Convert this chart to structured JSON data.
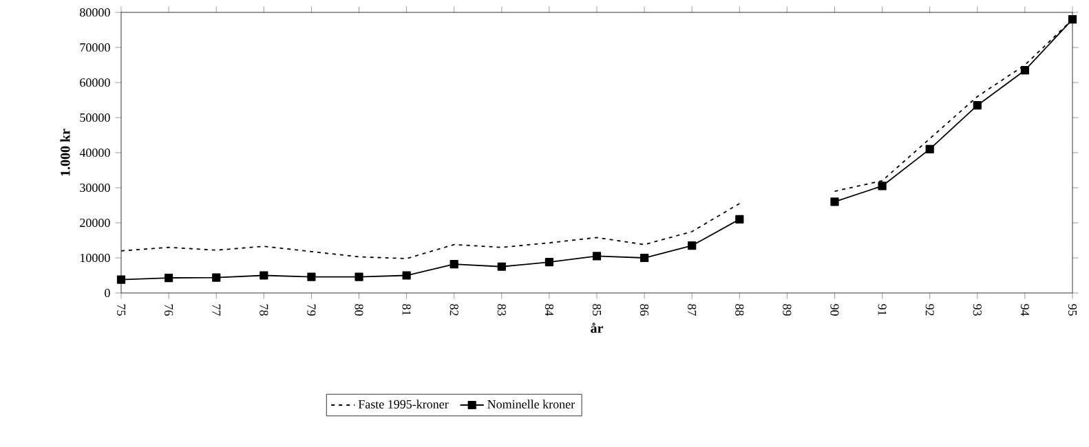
{
  "chart_data": {
    "type": "line",
    "xlabel": "år",
    "ylabel": "1.000 kr",
    "categories": [
      "75",
      "76",
      "77",
      "78",
      "79",
      "80",
      "81",
      "82",
      "83",
      "84",
      "85",
      "86",
      "87",
      "88",
      "89",
      "90",
      "91",
      "92",
      "93",
      "94",
      "95"
    ],
    "series": [
      {
        "name": "Faste 1995-kroner",
        "color": "#000000",
        "line_style": "dashed",
        "marker": "none",
        "values": [
          12000,
          13000,
          12200,
          13300,
          11800,
          10300,
          9800,
          13800,
          13000,
          14300,
          15800,
          13800,
          17500,
          25500,
          null,
          29000,
          32000,
          44000,
          56000,
          65000,
          78000
        ]
      },
      {
        "name": "Nominelle kroner",
        "color": "#000000",
        "line_style": "solid",
        "marker": "square",
        "values": [
          3800,
          4300,
          4400,
          5000,
          4600,
          4600,
          5000,
          8200,
          7500,
          8800,
          10500,
          10000,
          13500,
          21000,
          null,
          26000,
          30500,
          41000,
          53500,
          63500,
          78000
        ]
      }
    ],
    "ylim": [
      0,
      80000
    ],
    "yticks": [
      0,
      10000,
      20000,
      30000,
      40000,
      50000,
      60000,
      70000,
      80000
    ],
    "grid": false,
    "legend": "bottom"
  }
}
